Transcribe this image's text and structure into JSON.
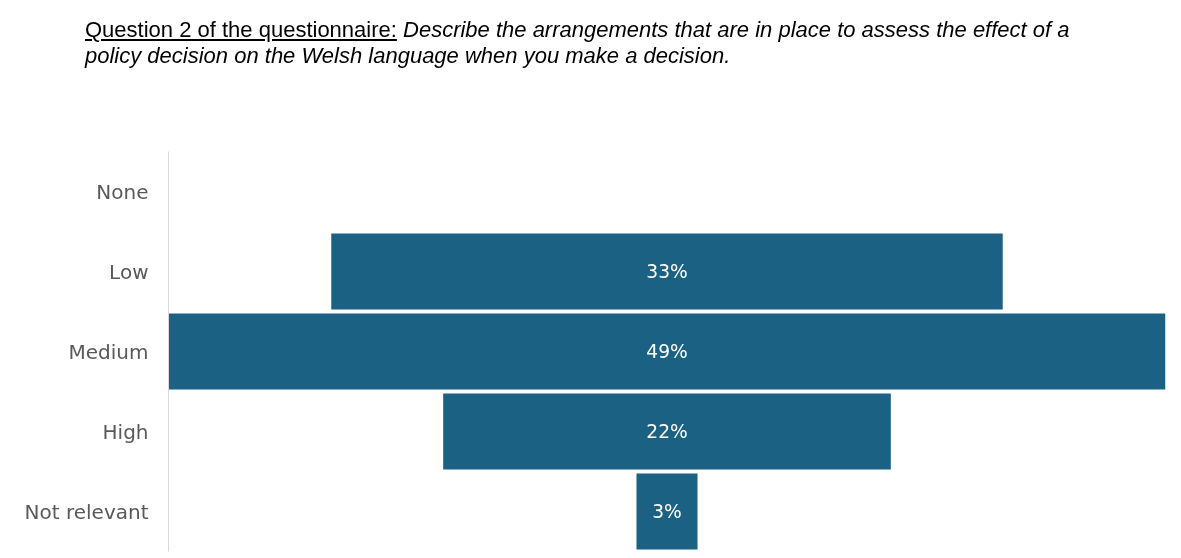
{
  "chart_data": {
    "type": "other",
    "title": "Question 2 of the questionnaire:",
    "subtitle": "Describe the arrangements that are in place to assess the effect of a policy decision on the Welsh language when you make a decision.",
    "categories": [
      "None",
      "Low",
      "Medium",
      "High",
      "Not relevant"
    ],
    "values": [
      null,
      33,
      49,
      22,
      3
    ],
    "value_labels": [
      null,
      "33%",
      "49%",
      "22%",
      "3%"
    ],
    "color": "#1a6184"
  }
}
